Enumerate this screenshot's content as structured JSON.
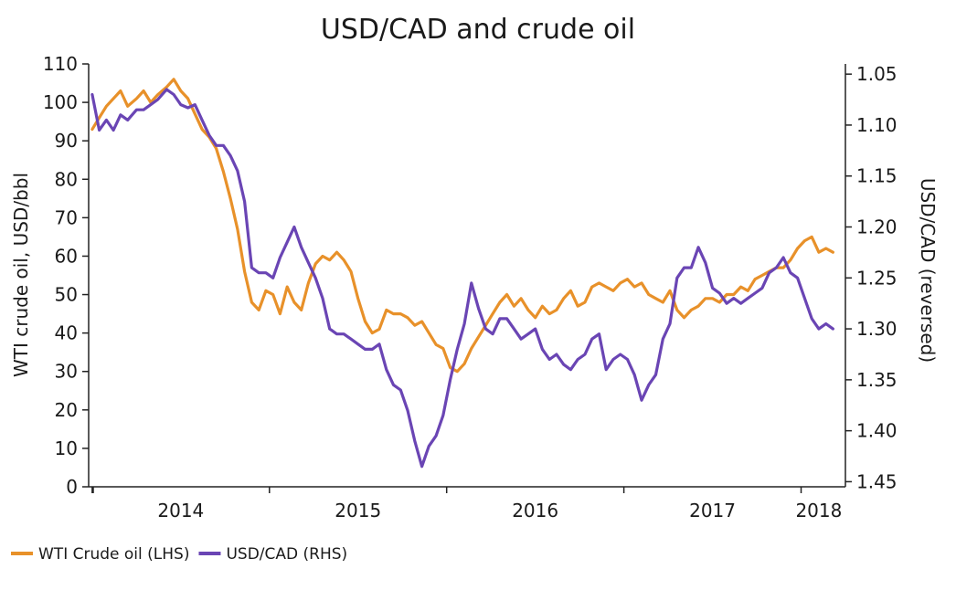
{
  "chart_data": {
    "type": "line",
    "title": "USD/CAD and crude oil",
    "ylabel_left": "WTI crude oil, USD/bbl",
    "ylabel_right": "USD/CAD (reversed)",
    "ylim_left": [
      0,
      110
    ],
    "ylim_right": [
      1.455,
      1.04
    ],
    "right_axis_reversed": true,
    "xlim": [
      2013.98,
      2018.25
    ],
    "x_ticks": [
      2014,
      2015,
      2016,
      2017,
      2018
    ],
    "x_tick_positions": [
      2014.0,
      2015.0,
      2016.0,
      2017.0,
      2018.0
    ],
    "x_tick_labels": [
      "2014",
      "2015",
      "2016",
      "2017",
      "2018"
    ],
    "x_label_positions": [
      2014.5,
      2015.5,
      2016.5,
      2017.5,
      2018.1
    ],
    "y_ticks_left": [
      0,
      10,
      20,
      30,
      40,
      50,
      60,
      70,
      80,
      90,
      100,
      110
    ],
    "y_tick_labels_left": [
      "0",
      "10",
      "20",
      "30",
      "40",
      "50",
      "60",
      "70",
      "80",
      "90",
      "100",
      "110"
    ],
    "y_ticks_right": [
      1.05,
      1.1,
      1.15,
      1.2,
      1.25,
      1.3,
      1.35,
      1.4,
      1.45
    ],
    "y_tick_labels_right": [
      "1.05",
      "1.10",
      "1.15",
      "1.20",
      "1.25",
      "1.30",
      "1.35",
      "1.40",
      "1.45"
    ],
    "legend": "bottom-left",
    "series": [
      {
        "name": "WTI Crude oil (LHS)",
        "axis": "left",
        "color": "#E8912A",
        "x": [
          2014.0,
          2014.04,
          2014.08,
          2014.12,
          2014.16,
          2014.2,
          2014.25,
          2014.29,
          2014.33,
          2014.37,
          2014.42,
          2014.46,
          2014.5,
          2014.54,
          2014.58,
          2014.62,
          2014.66,
          2014.7,
          2014.74,
          2014.78,
          2014.82,
          2014.86,
          2014.9,
          2014.94,
          2014.98,
          2015.02,
          2015.06,
          2015.1,
          2015.14,
          2015.18,
          2015.22,
          2015.26,
          2015.3,
          2015.34,
          2015.38,
          2015.42,
          2015.46,
          2015.5,
          2015.54,
          2015.58,
          2015.62,
          2015.66,
          2015.7,
          2015.74,
          2015.78,
          2015.82,
          2015.86,
          2015.9,
          2015.94,
          2015.98,
          2016.02,
          2016.06,
          2016.1,
          2016.14,
          2016.18,
          2016.22,
          2016.26,
          2016.3,
          2016.34,
          2016.38,
          2016.42,
          2016.46,
          2016.5,
          2016.54,
          2016.58,
          2016.62,
          2016.66,
          2016.7,
          2016.74,
          2016.78,
          2016.82,
          2016.86,
          2016.9,
          2016.94,
          2016.98,
          2017.02,
          2017.06,
          2017.1,
          2017.14,
          2017.18,
          2017.22,
          2017.26,
          2017.3,
          2017.34,
          2017.38,
          2017.42,
          2017.46,
          2017.5,
          2017.54,
          2017.58,
          2017.62,
          2017.66,
          2017.7,
          2017.74,
          2017.78,
          2017.82,
          2017.86,
          2017.9,
          2017.94,
          2017.98,
          2018.02,
          2018.06,
          2018.1,
          2018.14,
          2018.18
        ],
        "values": [
          93,
          96,
          99,
          101,
          103,
          99,
          101,
          103,
          100,
          102,
          104,
          106,
          103,
          101,
          97,
          93,
          91,
          88,
          82,
          75,
          67,
          56,
          48,
          46,
          51,
          50,
          45,
          52,
          48,
          46,
          53,
          58,
          60,
          59,
          61,
          59,
          56,
          49,
          43,
          40,
          41,
          46,
          45,
          45,
          44,
          42,
          43,
          40,
          37,
          36,
          31,
          30,
          32,
          36,
          39,
          42,
          45,
          48,
          50,
          47,
          49,
          46,
          44,
          47,
          45,
          46,
          49,
          51,
          47,
          48,
          52,
          53,
          52,
          51,
          53,
          54,
          52,
          53,
          50,
          49,
          48,
          51,
          46,
          44,
          46,
          47,
          49,
          49,
          48,
          50,
          50,
          52,
          51,
          54,
          55,
          56,
          57,
          57,
          59,
          62,
          64,
          65,
          61,
          62,
          61
        ]
      },
      {
        "name": "USD/CAD (RHS)",
        "axis": "right",
        "color": "#6A45B4",
        "x": [
          2014.0,
          2014.04,
          2014.08,
          2014.12,
          2014.16,
          2014.2,
          2014.25,
          2014.29,
          2014.33,
          2014.37,
          2014.42,
          2014.46,
          2014.5,
          2014.54,
          2014.58,
          2014.62,
          2014.66,
          2014.7,
          2014.74,
          2014.78,
          2014.82,
          2014.86,
          2014.9,
          2014.94,
          2014.98,
          2015.02,
          2015.06,
          2015.1,
          2015.14,
          2015.18,
          2015.22,
          2015.26,
          2015.3,
          2015.34,
          2015.38,
          2015.42,
          2015.46,
          2015.5,
          2015.54,
          2015.58,
          2015.62,
          2015.66,
          2015.7,
          2015.74,
          2015.78,
          2015.82,
          2015.86,
          2015.9,
          2015.94,
          2015.98,
          2016.02,
          2016.06,
          2016.1,
          2016.14,
          2016.18,
          2016.22,
          2016.26,
          2016.3,
          2016.34,
          2016.38,
          2016.42,
          2016.46,
          2016.5,
          2016.54,
          2016.58,
          2016.62,
          2016.66,
          2016.7,
          2016.74,
          2016.78,
          2016.82,
          2016.86,
          2016.9,
          2016.94,
          2016.98,
          2017.02,
          2017.06,
          2017.1,
          2017.14,
          2017.18,
          2017.22,
          2017.26,
          2017.3,
          2017.34,
          2017.38,
          2017.42,
          2017.46,
          2017.5,
          2017.54,
          2017.58,
          2017.62,
          2017.66,
          2017.7,
          2017.74,
          2017.78,
          2017.82,
          2017.86,
          2017.9,
          2017.94,
          2017.98,
          2018.02,
          2018.06,
          2018.1,
          2018.14,
          2018.18
        ],
        "values": [
          1.07,
          1.105,
          1.095,
          1.105,
          1.09,
          1.095,
          1.085,
          1.085,
          1.08,
          1.075,
          1.065,
          1.07,
          1.08,
          1.083,
          1.08,
          1.095,
          1.11,
          1.12,
          1.12,
          1.13,
          1.145,
          1.175,
          1.24,
          1.245,
          1.245,
          1.25,
          1.23,
          1.215,
          1.2,
          1.22,
          1.235,
          1.25,
          1.27,
          1.3,
          1.305,
          1.305,
          1.31,
          1.315,
          1.32,
          1.32,
          1.315,
          1.34,
          1.355,
          1.36,
          1.38,
          1.41,
          1.435,
          1.415,
          1.405,
          1.385,
          1.35,
          1.32,
          1.295,
          1.255,
          1.28,
          1.3,
          1.305,
          1.29,
          1.29,
          1.3,
          1.31,
          1.305,
          1.3,
          1.32,
          1.33,
          1.325,
          1.335,
          1.34,
          1.33,
          1.325,
          1.31,
          1.305,
          1.34,
          1.33,
          1.325,
          1.33,
          1.345,
          1.37,
          1.355,
          1.345,
          1.31,
          1.295,
          1.25,
          1.24,
          1.24,
          1.22,
          1.235,
          1.26,
          1.265,
          1.275,
          1.27,
          1.275,
          1.27,
          1.265,
          1.26,
          1.245,
          1.24,
          1.23,
          1.245,
          1.25,
          1.27,
          1.29,
          1.3,
          1.295,
          1.3
        ]
      }
    ]
  }
}
